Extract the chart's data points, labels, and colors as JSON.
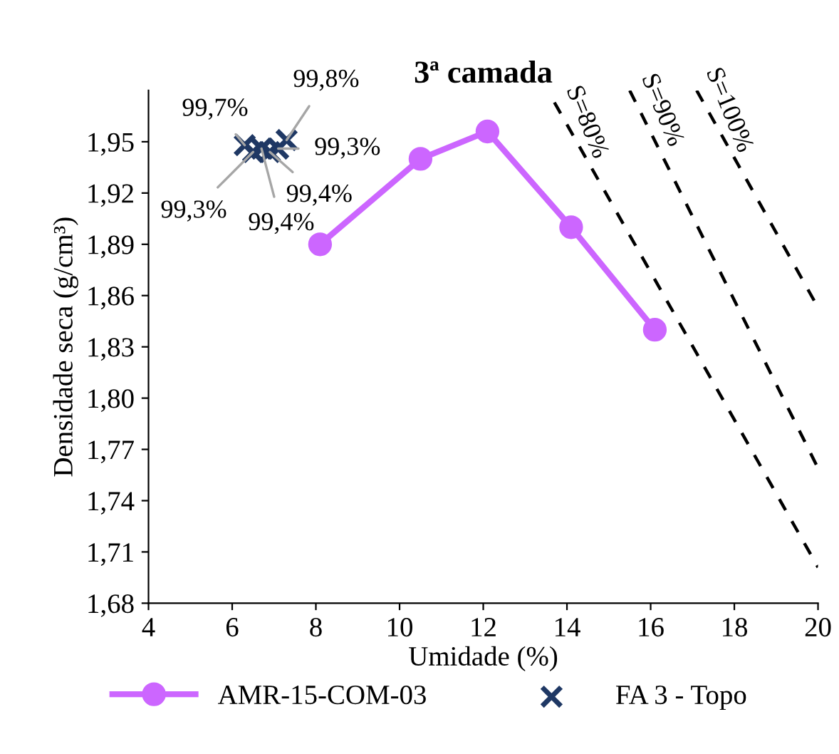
{
  "chart_data": {
    "type": "line",
    "title": "3ª camada",
    "xlabel": "Umidade (%)",
    "ylabel": "Densidade seca (g/cm³)",
    "xlim": [
      4,
      20
    ],
    "xticks": [
      4,
      6,
      8,
      10,
      12,
      14,
      16,
      18,
      20
    ],
    "ylim": [
      1.68,
      1.98
    ],
    "yticks": [
      {
        "value": 1.68,
        "label": "1,68"
      },
      {
        "value": 1.71,
        "label": "1,71"
      },
      {
        "value": 1.74,
        "label": "1,74"
      },
      {
        "value": 1.77,
        "label": "1,77"
      },
      {
        "value": 1.8,
        "label": "1,80"
      },
      {
        "value": 1.83,
        "label": "1,83"
      },
      {
        "value": 1.86,
        "label": "1,86"
      },
      {
        "value": 1.89,
        "label": "1,89"
      },
      {
        "value": 1.92,
        "label": "1,92"
      },
      {
        "value": 1.95,
        "label": "1,95"
      }
    ],
    "grid": false,
    "legend": "bottom",
    "series": [
      {
        "name": "AMR-15-COM-03",
        "color": "#cc66ff",
        "marker": "circle",
        "line_style": "solid",
        "x": [
          8.1,
          10.5,
          12.1,
          14.1,
          16.1
        ],
        "values": [
          1.89,
          1.94,
          1.956,
          1.9,
          1.84
        ]
      },
      {
        "name": "FA 3 - Topo",
        "type": "scatter",
        "color": "#1f3864",
        "marker": "cross",
        "x": [
          6.3,
          6.5,
          6.7,
          6.9,
          7.1,
          7.3
        ],
        "values": [
          1.948,
          1.944,
          1.946,
          1.944,
          1.946,
          1.951
        ]
      },
      {
        "name": "S=80%",
        "color": "#000000",
        "marker": "none",
        "line_style": "dashed",
        "x": [
          13.7,
          20
        ],
        "values": [
          1.973,
          1.701
        ]
      },
      {
        "name": "S=90%",
        "color": "#000000",
        "marker": "none",
        "line_style": "dashed",
        "x": [
          15.5,
          20
        ],
        "values": [
          1.98,
          1.759
        ]
      },
      {
        "name": "S=100%",
        "color": "#000000",
        "marker": "none",
        "line_style": "dashed",
        "x": [
          17.1,
          20
        ],
        "values": [
          1.98,
          1.853
        ]
      }
    ],
    "annotations": [
      {
        "text": "99,7%",
        "x": 6.3,
        "y": 1.948
      },
      {
        "text": "99,3%",
        "x": 6.5,
        "y": 1.944
      },
      {
        "text": "99,4%",
        "x": 6.7,
        "y": 1.946
      },
      {
        "text": "99,4%",
        "x": 6.9,
        "y": 1.944
      },
      {
        "text": "99,3%",
        "x": 7.1,
        "y": 1.946
      },
      {
        "text": "99,8%",
        "x": 7.3,
        "y": 1.951
      }
    ]
  }
}
